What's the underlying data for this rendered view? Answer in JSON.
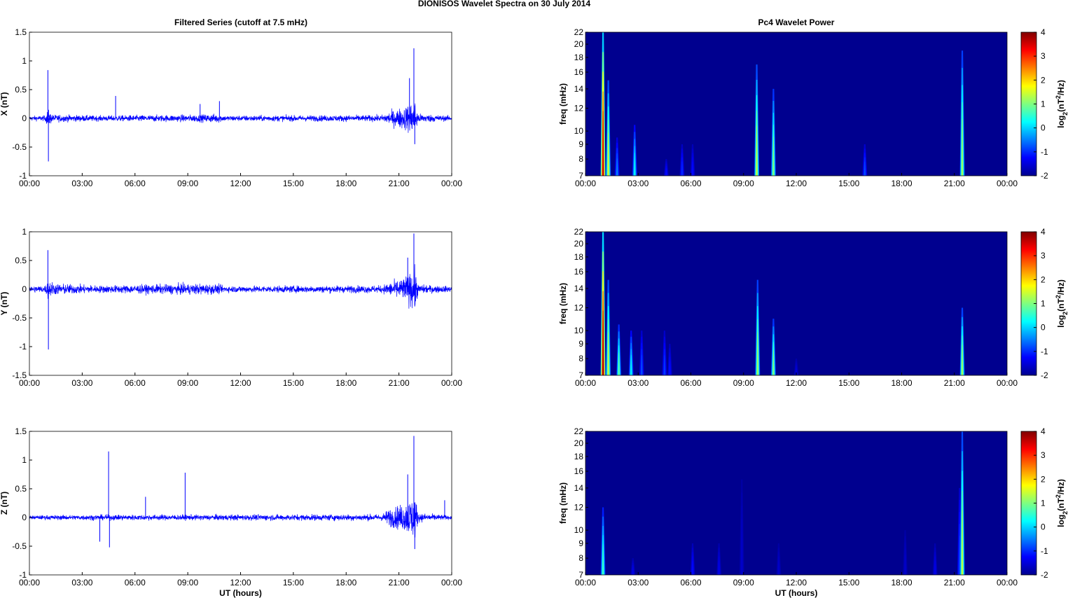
{
  "figure": {
    "suptitle": "DIONISOS Wavelet Spectra on 30 July      2014",
    "left_title": "Filtered Series (cutoff at 7.5 mHz)",
    "right_title": "Pc4 Wavelet Power"
  },
  "colors": {
    "trace": "#0000ff",
    "spectrogram_background": "#00008f",
    "axis": "#000000"
  },
  "chart_data": [
    {
      "type": "line",
      "name": "X series",
      "ylabel": "X (nT)",
      "xlabel": "",
      "ylim": [
        -1,
        1.5
      ],
      "yticks": [
        "1.5",
        "1",
        "0.5",
        "0",
        "-0.5",
        "-1"
      ],
      "xticks": [
        "00:00",
        "03:00",
        "06:00",
        "09:00",
        "12:00",
        "15:00",
        "18:00",
        "21:00",
        "00:00"
      ],
      "xlim_hours": [
        0,
        24
      ],
      "noise_level": 0.05,
      "envelope": [
        [
          0,
          0.05
        ],
        [
          0.9,
          0.06
        ],
        [
          1.05,
          0.2
        ],
        [
          1.3,
          0.08
        ],
        [
          4,
          0.06
        ],
        [
          9.7,
          0.08
        ],
        [
          10.8,
          0.1
        ],
        [
          11,
          0.06
        ],
        [
          20,
          0.07
        ],
        [
          20.5,
          0.15
        ],
        [
          21.3,
          0.25
        ],
        [
          21.9,
          0.4
        ],
        [
          22.1,
          0.1
        ],
        [
          24,
          0.05
        ]
      ],
      "spikes": [
        [
          1.05,
          0.84
        ],
        [
          1.08,
          -0.75
        ],
        [
          4.9,
          0.39
        ],
        [
          9.7,
          0.25
        ],
        [
          10.8,
          0.3
        ],
        [
          21.85,
          1.22
        ],
        [
          21.9,
          -0.45
        ],
        [
          21.6,
          0.7
        ]
      ]
    },
    {
      "type": "heatmap",
      "name": "X wavelet power",
      "ylabel": "freq (mHz)",
      "xlabel": "",
      "yticks": [
        "22",
        "20",
        "18",
        "16",
        "14",
        "12",
        "10",
        "9",
        "8",
        "7"
      ],
      "ylim_mhz": [
        7,
        22
      ],
      "xticks": [
        "00:00",
        "03:00",
        "06:00",
        "09:00",
        "12:00",
        "15:00",
        "18:00",
        "21:00",
        "00:00"
      ],
      "colorbar_label": "log2(nT²/Hz)",
      "colorbar_ticks": [
        "4",
        "3",
        "2",
        "1",
        "0",
        "-1",
        "-2"
      ],
      "clim": [
        -2,
        4
      ],
      "bursts": [
        [
          1.0,
          22,
          3.6
        ],
        [
          1.3,
          15,
          1.5
        ],
        [
          2.8,
          10.5,
          0.2
        ],
        [
          1.8,
          9.5,
          -0.5
        ],
        [
          4.6,
          8,
          -1.2
        ],
        [
          5.5,
          9,
          -1
        ],
        [
          6.1,
          9,
          -1.2
        ],
        [
          9.75,
          17,
          1.4
        ],
        [
          10.7,
          14,
          1.0
        ],
        [
          15.9,
          9,
          -0.8
        ],
        [
          21.45,
          19,
          1.2
        ]
      ]
    },
    {
      "type": "line",
      "name": "Y series",
      "ylabel": "Y (nT)",
      "xlabel": "",
      "ylim": [
        -1.5,
        1
      ],
      "yticks": [
        "1",
        "0.5",
        "0",
        "-0.5",
        "-1",
        "-1.5"
      ],
      "xticks": [
        "00:00",
        "03:00",
        "06:00",
        "09:00",
        "12:00",
        "15:00",
        "18:00",
        "21:00",
        "00:00"
      ],
      "xlim_hours": [
        0,
        24
      ],
      "noise_level": 0.06,
      "envelope": [
        [
          0,
          0.07
        ],
        [
          0.9,
          0.08
        ],
        [
          1.05,
          0.2
        ],
        [
          1.5,
          0.12
        ],
        [
          4,
          0.08
        ],
        [
          9.8,
          0.12
        ],
        [
          10.8,
          0.1
        ],
        [
          11,
          0.07
        ],
        [
          20,
          0.08
        ],
        [
          20.5,
          0.15
        ],
        [
          21.3,
          0.25
        ],
        [
          21.9,
          0.45
        ],
        [
          22.1,
          0.1
        ],
        [
          24,
          0.06
        ]
      ],
      "spikes": [
        [
          1.05,
          0.68
        ],
        [
          1.08,
          -1.05
        ],
        [
          21.85,
          0.97
        ],
        [
          21.9,
          -0.3
        ],
        [
          21.5,
          0.55
        ]
      ]
    },
    {
      "type": "heatmap",
      "name": "Y wavelet power",
      "ylabel": "freq (mHz)",
      "xlabel": "",
      "yticks": [
        "22",
        "20",
        "18",
        "16",
        "14",
        "12",
        "10",
        "9",
        "8",
        "7"
      ],
      "ylim_mhz": [
        7,
        22
      ],
      "xticks": [
        "00:00",
        "03:00",
        "06:00",
        "09:00",
        "12:00",
        "15:00",
        "18:00",
        "21:00",
        "00:00"
      ],
      "colorbar_label": "log2(nT²/Hz)",
      "colorbar_ticks": [
        "4",
        "3",
        "2",
        "1",
        "0",
        "-1",
        "-2"
      ],
      "clim": [
        -2,
        4
      ],
      "bursts": [
        [
          1.0,
          22,
          3.8
        ],
        [
          1.3,
          15,
          1.4
        ],
        [
          1.9,
          10.5,
          0.8
        ],
        [
          2.6,
          10,
          0.2
        ],
        [
          3.2,
          10,
          -0.8
        ],
        [
          4.5,
          10,
          -0.9
        ],
        [
          4.8,
          9,
          -1.2
        ],
        [
          9.8,
          15,
          1.2
        ],
        [
          10.7,
          11,
          1.0
        ],
        [
          12.0,
          8,
          -1.5
        ],
        [
          21.45,
          12,
          1.2
        ]
      ]
    },
    {
      "type": "line",
      "name": "Z series",
      "ylabel": "Z (nT)",
      "xlabel": "UT (hours)",
      "ylim": [
        -1,
        1.5
      ],
      "yticks": [
        "1.5",
        "1",
        "0.5",
        "0",
        "-0.5",
        "-1"
      ],
      "xticks": [
        "00:00",
        "03:00",
        "06:00",
        "09:00",
        "12:00",
        "15:00",
        "18:00",
        "21:00",
        "00:00"
      ],
      "xlim_hours": [
        0,
        24
      ],
      "noise_level": 0.04,
      "envelope": [
        [
          0,
          0.04
        ],
        [
          1,
          0.05
        ],
        [
          4.5,
          0.06
        ],
        [
          8.9,
          0.06
        ],
        [
          20,
          0.07
        ],
        [
          20.5,
          0.2
        ],
        [
          21.3,
          0.3
        ],
        [
          21.9,
          0.5
        ],
        [
          22.1,
          0.1
        ],
        [
          24,
          0.04
        ]
      ],
      "spikes": [
        [
          4.5,
          1.15
        ],
        [
          4.55,
          -0.52
        ],
        [
          4.0,
          -0.42
        ],
        [
          8.85,
          0.78
        ],
        [
          6.6,
          0.36
        ],
        [
          21.85,
          1.42
        ],
        [
          21.9,
          -0.55
        ],
        [
          21.5,
          0.75
        ],
        [
          23.6,
          0.3
        ]
      ]
    },
    {
      "type": "heatmap",
      "name": "Z wavelet power",
      "ylabel": "freq (mHz)",
      "xlabel": "UT (hours)",
      "yticks": [
        "22",
        "20",
        "18",
        "16",
        "14",
        "12",
        "10",
        "9",
        "8",
        "7"
      ],
      "ylim_mhz": [
        7,
        22
      ],
      "xticks": [
        "00:00",
        "03:00",
        "06:00",
        "09:00",
        "12:00",
        "15:00",
        "18:00",
        "21:00",
        "00:00"
      ],
      "colorbar_label": "log2(nT²/Hz)",
      "colorbar_ticks": [
        "4",
        "3",
        "2",
        "1",
        "0",
        "-1",
        "-2"
      ],
      "clim": [
        -2,
        4
      ],
      "bursts": [
        [
          1.0,
          12,
          0.6
        ],
        [
          2.7,
          8,
          -1.4
        ],
        [
          6.1,
          9,
          -1.2
        ],
        [
          7.6,
          9,
          -1.4
        ],
        [
          8.9,
          15,
          -1.6
        ],
        [
          11.0,
          9,
          -1.6
        ],
        [
          18.2,
          10,
          -1.6
        ],
        [
          19.9,
          9,
          -1.4
        ],
        [
          21.3,
          14,
          -0.8
        ],
        [
          21.45,
          22,
          1.4
        ]
      ]
    }
  ]
}
